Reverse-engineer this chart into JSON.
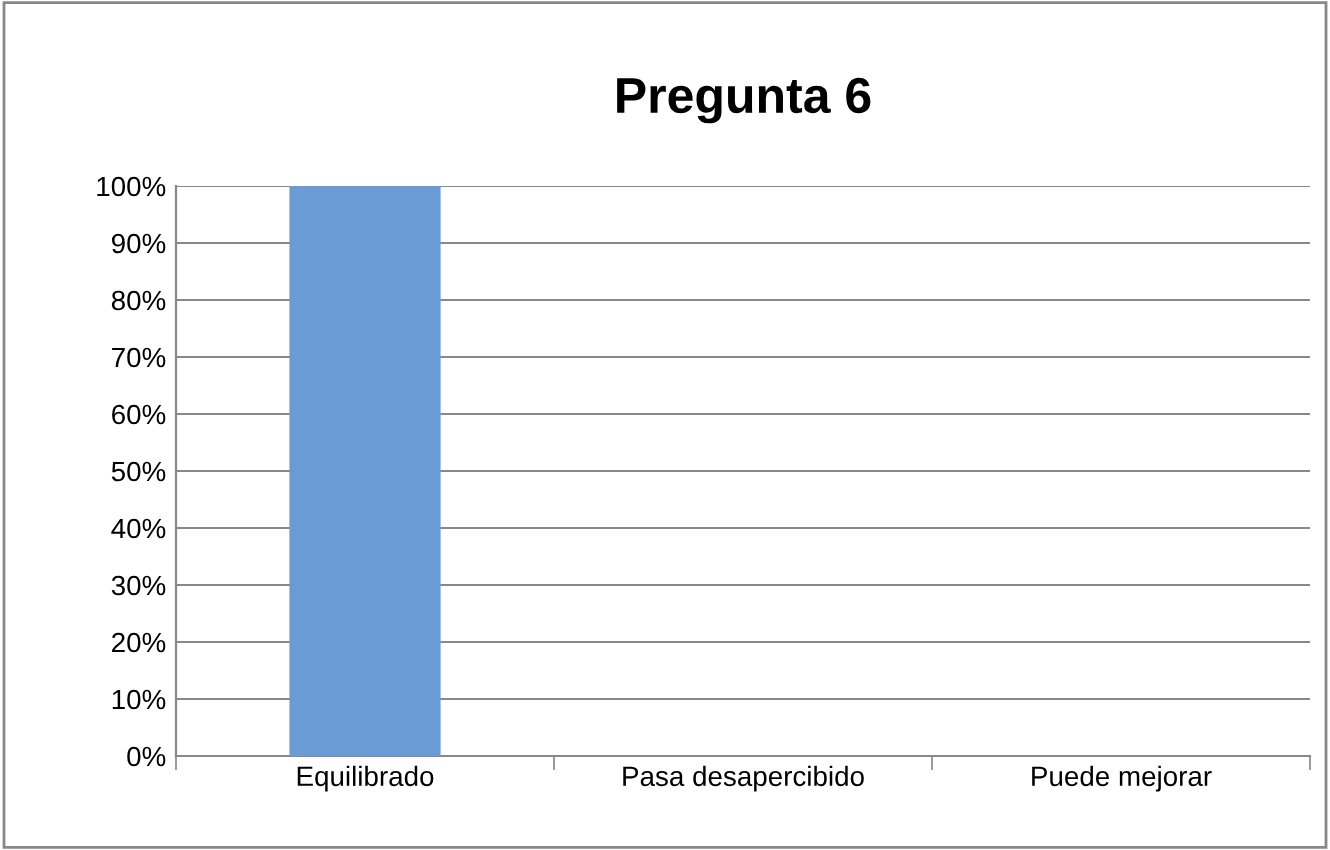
{
  "chart_data": {
    "type": "bar",
    "title": "Pregunta 6",
    "categories": [
      "Equilibrado",
      "Pasa desapercibido",
      "Puede mejorar"
    ],
    "values": [
      100,
      0,
      0
    ],
    "color": "#6a9bd4",
    "ylim": [
      0,
      100
    ],
    "yticks": [
      {
        "value": 0,
        "label": "0%"
      },
      {
        "value": 10,
        "label": "10%"
      },
      {
        "value": 20,
        "label": "20%"
      },
      {
        "value": 30,
        "label": "30%"
      },
      {
        "value": 40,
        "label": "40%"
      },
      {
        "value": 50,
        "label": "50%"
      },
      {
        "value": 60,
        "label": "60%"
      },
      {
        "value": 70,
        "label": "70%"
      },
      {
        "value": 80,
        "label": "80%"
      },
      {
        "value": 90,
        "label": "90%"
      },
      {
        "value": 100,
        "label": "100%"
      }
    ],
    "grid": "y",
    "legend": false
  }
}
